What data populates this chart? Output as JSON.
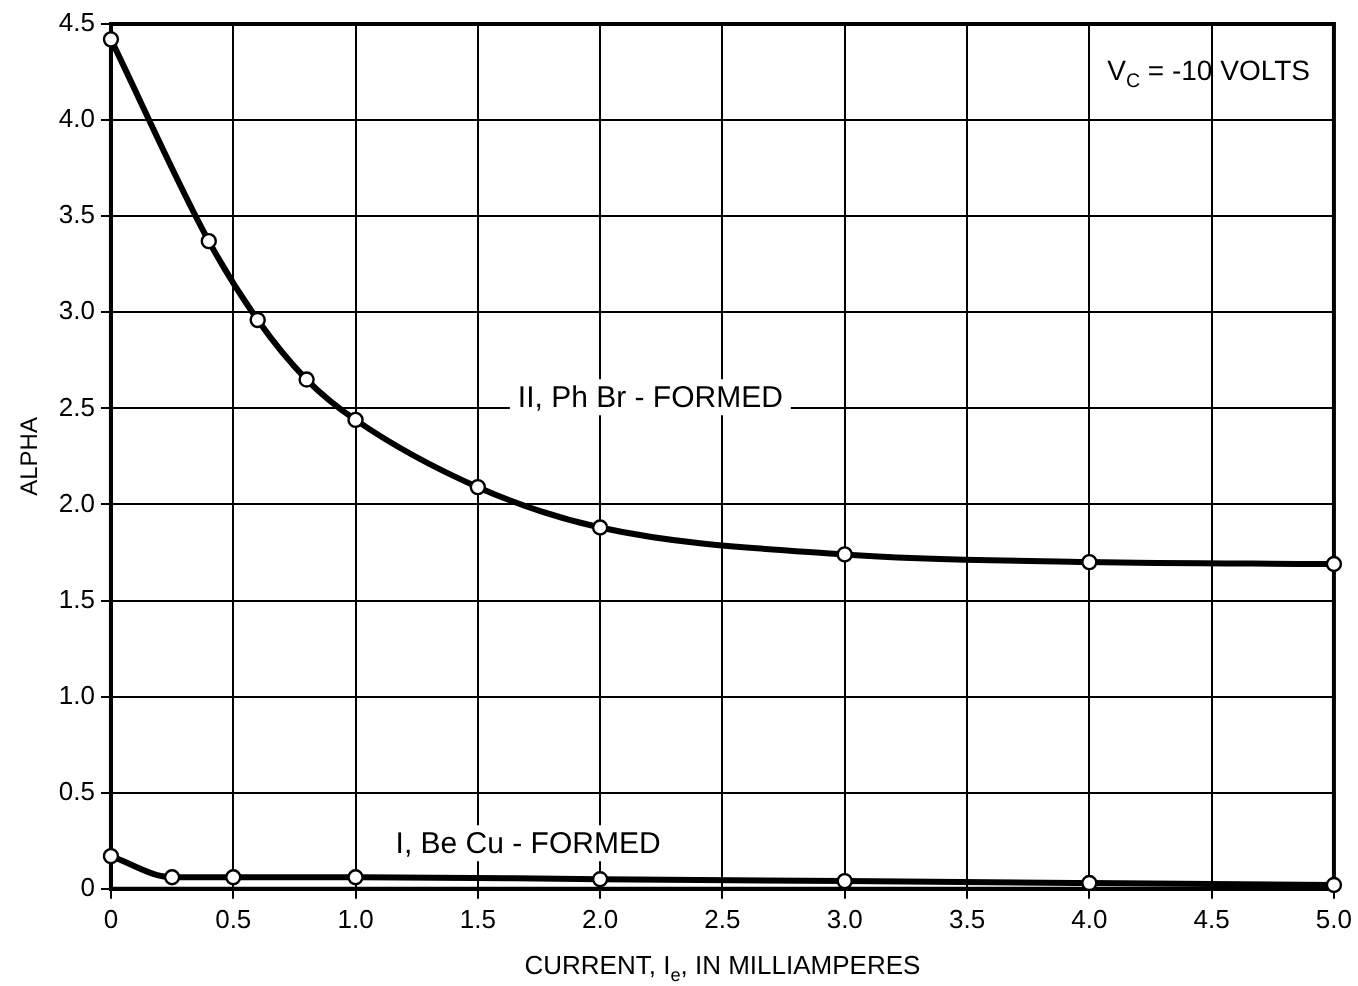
{
  "chart_data": {
    "type": "line",
    "xlabel": "CURRENT, I$_{e}$, IN MILLIAMPERES",
    "ylabel": "ALPHA",
    "annotations": [
      "V$_{C}$ = -10 VOLTS"
    ],
    "series": [
      {
        "name": "II, Ph Br - FORMED",
        "color": "#000000",
        "x": [
          0,
          0.4,
          0.6,
          0.8,
          1.0,
          1.5,
          2.0,
          3.0,
          4.0,
          5.0
        ],
        "values": [
          4.42,
          3.37,
          2.96,
          2.65,
          2.44,
          2.09,
          1.88,
          1.74,
          1.7,
          1.69
        ]
      },
      {
        "name": "I, Be Cu - FORMED",
        "color": "#000000",
        "x": [
          0,
          0.25,
          0.5,
          1.0,
          2.0,
          3.0,
          4.0,
          5.0
        ],
        "values": [
          0.17,
          0.06,
          0.06,
          0.06,
          0.05,
          0.04,
          0.03,
          0.02
        ]
      }
    ],
    "xlim": [
      0,
      5
    ],
    "xticks": [
      0,
      0.5,
      {
        "value": 1,
        "label": "1.0"
      },
      1.5,
      {
        "value": 2,
        "label": "2.0"
      },
      2.5,
      {
        "value": 3,
        "label": "3.0"
      },
      3.5,
      {
        "value": 4,
        "label": "4.0"
      },
      4.5,
      {
        "value": 5,
        "label": "5.0"
      }
    ],
    "ylim": [
      0,
      4.5
    ],
    "yticks": [
      0,
      0.5,
      {
        "value": 1,
        "label": "1.0"
      },
      1.5,
      {
        "value": 2,
        "label": "2.0"
      },
      2.5,
      {
        "value": 3,
        "label": "3.0"
      },
      3.5,
      {
        "value": 4,
        "label": "4.0"
      },
      4.5
    ],
    "grid": true,
    "legend": false,
    "marker": "circle",
    "line_style": "solid"
  }
}
